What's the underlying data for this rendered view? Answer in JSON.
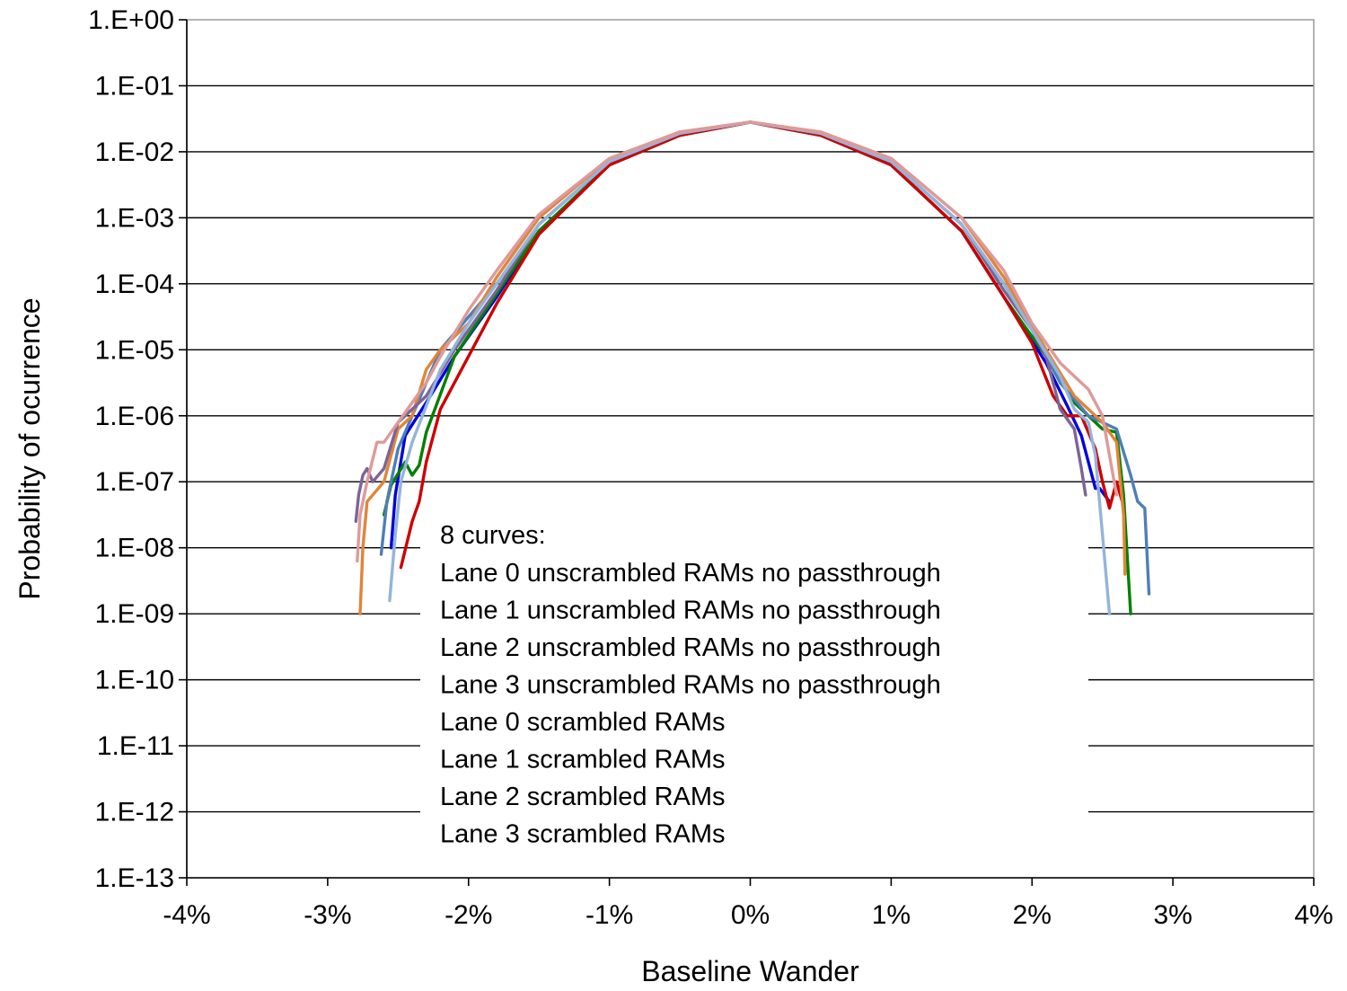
{
  "chart_data": {
    "type": "line",
    "title": "",
    "xlabel": "Baseline Wander",
    "ylabel": "Probability of ocurrence",
    "xlim": [
      -4,
      4
    ],
    "x_tick_values": [
      -4,
      -3,
      -2,
      -1,
      0,
      1,
      2,
      3,
      4
    ],
    "x_tick_labels": [
      "-4%",
      "-3%",
      "-2%",
      "-1%",
      "0%",
      "1%",
      "2%",
      "3%",
      "4%"
    ],
    "y_scale": "log",
    "ylim_exponent": [
      -13,
      0
    ],
    "y_tick_exponents": [
      0,
      -1,
      -2,
      -3,
      -4,
      -5,
      -6,
      -7,
      -8,
      -9,
      -10,
      -11,
      -12,
      -13
    ],
    "y_tick_labels": [
      "1.E+00",
      "1.E-01",
      "1.E-02",
      "1.E-03",
      "1.E-04",
      "1.E-05",
      "1.E-06",
      "1.E-07",
      "1.E-08",
      "1.E-09",
      "1.E-10",
      "1.E-11",
      "1.E-12",
      "1.E-13"
    ],
    "grid": "horizontal",
    "legend": "none",
    "annotation": {
      "heading": "8 curves:",
      "lines": [
        "Lane 0 unscrambled RAMs no passthrough",
        "Lane 1 unscrambled RAMs no passthrough",
        "Lane 2 unscrambled RAMs no passthrough",
        "Lane 3 unscrambled RAMs no passthrough",
        "Lane 0 scrambled RAMs",
        "Lane 1 scrambled RAMs",
        "Lane 2 scrambled RAMs",
        "Lane 3 scrambled RAMs"
      ]
    },
    "series": [
      {
        "color": "#0000dd",
        "x": [
          -2.55,
          -2.52,
          -2.45,
          -2.3,
          -2.1,
          -1.8,
          -1.5,
          -1,
          -0.5,
          0,
          0.5,
          1,
          1.5,
          1.8,
          2.1,
          2.25,
          2.35,
          2.45,
          2.48,
          2.55
        ],
        "log10_y": [
          -8.0,
          -7.2,
          -6.3,
          -5.8,
          -5.1,
          -4.2,
          -3.2,
          -2.2,
          -1.75,
          -1.55,
          -1.75,
          -2.2,
          -3.2,
          -4.2,
          -5.2,
          -5.85,
          -6.3,
          -7.1,
          -7.1,
          -7.3
        ]
      },
      {
        "color": "#008000",
        "x": [
          -2.6,
          -2.55,
          -2.45,
          -2.4,
          -2.35,
          -2.3,
          -2.1,
          -1.8,
          -1.5,
          -1,
          -0.5,
          0,
          0.5,
          1,
          1.5,
          1.8,
          2.1,
          2.3,
          2.5,
          2.6,
          2.65,
          2.7
        ],
        "log10_y": [
          -7.5,
          -7.05,
          -6.7,
          -6.9,
          -6.75,
          -6.25,
          -5.1,
          -4.15,
          -3.2,
          -2.2,
          -1.75,
          -1.55,
          -1.75,
          -2.2,
          -3.2,
          -4.2,
          -5.1,
          -5.8,
          -6.2,
          -6.25,
          -7.2,
          -9.0
        ]
      },
      {
        "color": "#cc0000",
        "x": [
          -2.48,
          -2.4,
          -2.35,
          -2.3,
          -2.2,
          -2.05,
          -1.8,
          -1.5,
          -1,
          -0.5,
          0,
          0.5,
          1,
          1.5,
          1.8,
          2.0,
          2.15,
          2.25,
          2.35,
          2.45,
          2.5,
          2.55,
          2.6,
          2.64
        ],
        "log10_y": [
          -8.3,
          -7.6,
          -7.3,
          -6.7,
          -5.9,
          -5.3,
          -4.3,
          -3.25,
          -2.2,
          -1.75,
          -1.55,
          -1.75,
          -2.2,
          -3.2,
          -4.2,
          -4.9,
          -5.7,
          -6.0,
          -6.0,
          -6.5,
          -7.0,
          -7.4,
          -7.0,
          -7.3
        ]
      },
      {
        "color": "#4e7fb6",
        "x": [
          -2.62,
          -2.58,
          -2.5,
          -2.4,
          -2.2,
          -2.0,
          -1.8,
          -1.5,
          -1,
          -0.5,
          0,
          0.5,
          1,
          1.5,
          1.8,
          2.0,
          2.2,
          2.4,
          2.6,
          2.7,
          2.75,
          2.8,
          2.83
        ],
        "log10_y": [
          -8.1,
          -7.3,
          -6.5,
          -6.0,
          -5.0,
          -4.5,
          -4.0,
          -3.1,
          -2.15,
          -1.72,
          -1.55,
          -1.72,
          -2.15,
          -3.1,
          -4.0,
          -4.7,
          -5.5,
          -6.0,
          -6.2,
          -6.9,
          -7.3,
          -7.4,
          -8.7
        ]
      },
      {
        "color": "#e0853a",
        "x": [
          -2.77,
          -2.75,
          -2.72,
          -2.6,
          -2.5,
          -2.4,
          -2.3,
          -2.2,
          -2.0,
          -1.8,
          -1.5,
          -1,
          -0.5,
          0,
          0.5,
          1,
          1.5,
          1.8,
          2.1,
          2.3,
          2.5,
          2.6,
          2.65,
          2.66
        ],
        "log10_y": [
          -9.0,
          -8.0,
          -7.3,
          -7.0,
          -6.2,
          -6.0,
          -5.3,
          -5.0,
          -4.6,
          -3.9,
          -3.0,
          -2.1,
          -1.7,
          -1.55,
          -1.7,
          -2.1,
          -3.0,
          -3.9,
          -5.0,
          -5.7,
          -6.1,
          -6.4,
          -7.5,
          -8.4
        ]
      },
      {
        "color": "#7c6496",
        "x": [
          -2.8,
          -2.78,
          -2.75,
          -2.72,
          -2.68,
          -2.6,
          -2.5,
          -2.3,
          -2.1,
          -1.8,
          -1.5,
          -1,
          -0.5,
          0,
          0.5,
          1,
          1.5,
          1.8,
          2.0,
          2.1,
          2.2,
          2.3,
          2.35,
          2.38
        ],
        "log10_y": [
          -7.6,
          -7.2,
          -6.9,
          -6.8,
          -7.0,
          -6.8,
          -6.1,
          -5.7,
          -5.0,
          -4.1,
          -3.1,
          -2.15,
          -1.72,
          -1.55,
          -1.72,
          -2.15,
          -3.1,
          -4.1,
          -4.7,
          -5.1,
          -5.9,
          -6.2,
          -6.8,
          -7.2
        ]
      },
      {
        "color": "#94b4da",
        "x": [
          -2.56,
          -2.52,
          -2.48,
          -2.4,
          -2.2,
          -2.0,
          -1.8,
          -1.5,
          -1,
          -0.5,
          0,
          0.5,
          1,
          1.5,
          1.8,
          2.0,
          2.2,
          2.3,
          2.4,
          2.45,
          2.5,
          2.55
        ],
        "log10_y": [
          -8.8,
          -7.8,
          -7.0,
          -6.4,
          -5.3,
          -4.6,
          -4.0,
          -3.1,
          -2.15,
          -1.72,
          -1.55,
          -1.72,
          -2.15,
          -3.1,
          -4.0,
          -4.7,
          -5.4,
          -5.9,
          -6.1,
          -6.6,
          -7.8,
          -9.0
        ]
      },
      {
        "color": "#de9a9a",
        "x": [
          -2.79,
          -2.77,
          -2.72,
          -2.65,
          -2.6,
          -2.5,
          -2.3,
          -2.2,
          -2.0,
          -1.8,
          -1.5,
          -1,
          -0.5,
          0,
          0.5,
          1,
          1.5,
          1.8,
          2.0,
          2.2,
          2.4,
          2.5,
          2.55,
          2.6
        ],
        "log10_y": [
          -8.2,
          -7.5,
          -7.0,
          -6.4,
          -6.4,
          -6.1,
          -5.5,
          -5.1,
          -4.4,
          -3.8,
          -2.95,
          -2.1,
          -1.7,
          -1.55,
          -1.7,
          -2.1,
          -3.0,
          -3.8,
          -4.6,
          -5.2,
          -5.6,
          -6.0,
          -6.6,
          -7.2
        ]
      }
    ]
  }
}
